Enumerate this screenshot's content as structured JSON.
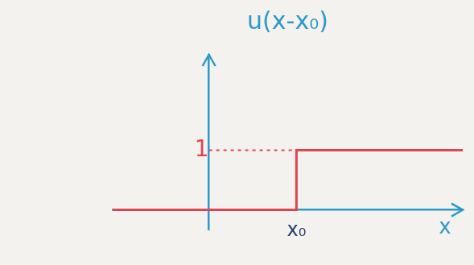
{
  "chart_data": {
    "type": "line",
    "title": "u(x-x₀)",
    "x_label": "x",
    "x": [
      -1.1,
      1,
      1,
      2.9
    ],
    "values": [
      0,
      0,
      1,
      1
    ],
    "color": "#e0454f",
    "xlim": [
      -1.1,
      2.9
    ],
    "ylim": [
      -0.33,
      2.6
    ],
    "xticks": [
      {
        "value": 1,
        "label": "x₀"
      }
    ],
    "yticks": [
      1
    ],
    "grid": false
  }
}
